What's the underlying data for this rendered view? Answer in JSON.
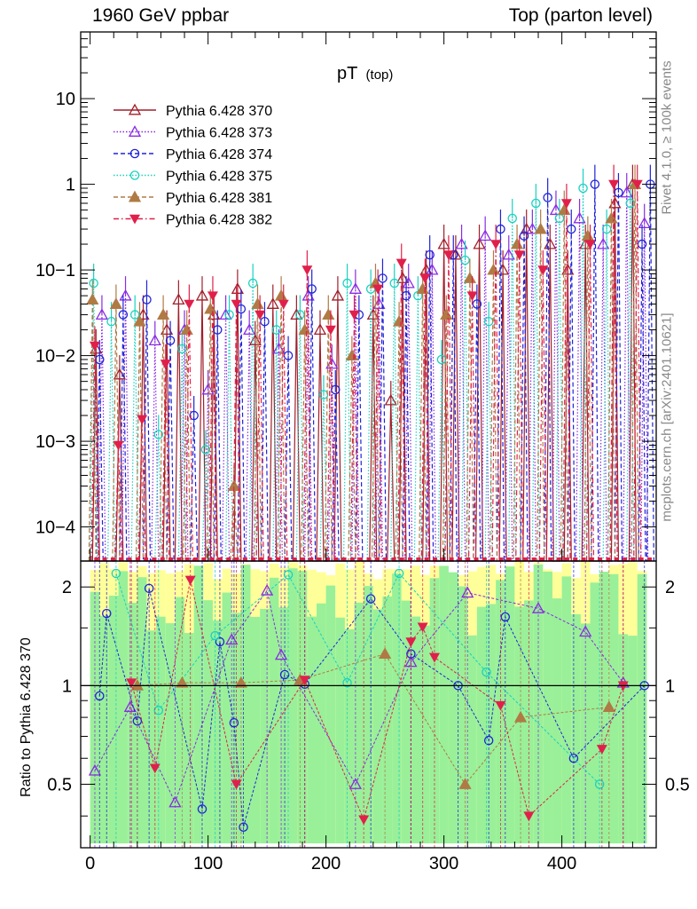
{
  "header": {
    "left": "1960 GeV ppbar",
    "right": "Top (parton level)"
  },
  "side": {
    "rivet": "Rivet 4.1.0, ≥ 100k events",
    "mcplots": "mcplots.cern.ch [arXiv:2401.10621]"
  },
  "colors": {
    "p370": "#a01f2a",
    "p373": "#8a2be2",
    "p374": "#1f23d6",
    "p375": "#19d1c0",
    "p381": "#b07a45",
    "p382": "#e0204a",
    "band_yellow": "#ffff99",
    "band_green": "#99f099"
  },
  "chart_data": [
    {
      "type": "line",
      "panel": "main",
      "title": "pT",
      "title_sub": "(top)",
      "yscale": "log",
      "xlim": [
        -8,
        480
      ],
      "ylim": [
        4e-05,
        60
      ],
      "yticks": [
        {
          "value": 10,
          "label": "10"
        },
        {
          "value": 1,
          "label": "1"
        },
        {
          "value": 0.1,
          "label": "10−1"
        },
        {
          "value": 0.01,
          "label": "10−2"
        },
        {
          "value": 0.001,
          "label": "10−3"
        },
        {
          "value": 0.0001,
          "label": "10−4"
        }
      ],
      "legend_position": "top-left",
      "series": [
        {
          "name": "Pythia 6.428 370",
          "marker": "triangle-open",
          "style": "solid",
          "points": [
            [
              5,
              0.012
            ],
            [
              25,
              0.006
            ],
            [
              45,
              0.03
            ],
            [
              65,
              0.02
            ],
            [
              75,
              0.045
            ],
            [
              95,
              0.05
            ],
            [
              105,
              0.03
            ],
            [
              125,
              0.06
            ],
            [
              140,
              0.015
            ],
            [
              155,
              0.04
            ],
            [
              175,
              0.03
            ],
            [
              195,
              0.02
            ],
            [
              210,
              0.05
            ],
            [
              240,
              0.03
            ],
            [
              255,
              0.003
            ],
            [
              265,
              0.08
            ],
            [
              285,
              0.1
            ],
            [
              300,
              0.2
            ],
            [
              310,
              0.15
            ],
            [
              330,
              0.2
            ],
            [
              350,
              0.1
            ],
            [
              370,
              0.3
            ],
            [
              390,
              0.2
            ],
            [
              405,
              0.1
            ],
            [
              420,
              0.2
            ],
            [
              445,
              0.6
            ],
            [
              460,
              1.0
            ]
          ]
        },
        {
          "name": "Pythia 6.428 373",
          "marker": "triangle-open",
          "style": "dotted",
          "points": [
            [
              10,
              0.03
            ],
            [
              30,
              0.05
            ],
            [
              55,
              0.015
            ],
            [
              80,
              0.02
            ],
            [
              100,
              0.004
            ],
            [
              115,
              0.03
            ],
            [
              135,
              0.02
            ],
            [
              160,
              0.012
            ],
            [
              185,
              0.05
            ],
            [
              205,
              0.008
            ],
            [
              225,
              0.06
            ],
            [
              245,
              0.04
            ],
            [
              270,
              0.07
            ],
            [
              290,
              0.1
            ],
            [
              315,
              0.2
            ],
            [
              335,
              0.25
            ],
            [
              355,
              0.15
            ],
            [
              375,
              0.3
            ],
            [
              395,
              0.5
            ],
            [
              415,
              0.4
            ],
            [
              435,
              0.2
            ],
            [
              455,
              0.8
            ],
            [
              470,
              0.35
            ]
          ]
        },
        {
          "name": "Pythia 6.428 374",
          "marker": "circle-open",
          "style": "dashed",
          "points": [
            [
              8,
              0.009
            ],
            [
              28,
              0.03
            ],
            [
              48,
              0.045
            ],
            [
              68,
              0.015
            ],
            [
              88,
              0.002
            ],
            [
              108,
              0.02
            ],
            [
              128,
              0.035
            ],
            [
              148,
              0.025
            ],
            [
              168,
              0.01
            ],
            [
              188,
              0.06
            ],
            [
              208,
              0.004
            ],
            [
              228,
              0.03
            ],
            [
              248,
              0.08
            ],
            [
              268,
              0.05
            ],
            [
              288,
              0.15
            ],
            [
              308,
              0.15
            ],
            [
              328,
              0.04
            ],
            [
              348,
              0.3
            ],
            [
              368,
              0.25
            ],
            [
              388,
              0.7
            ],
            [
              408,
              0.3
            ],
            [
              428,
              1.0
            ],
            [
              448,
              0.8
            ],
            [
              468,
              0.2
            ],
            [
              475,
              1.0
            ]
          ]
        },
        {
          "name": "Pythia 6.428 375",
          "marker": "circle-open",
          "style": "dotted",
          "points": [
            [
              3,
              0.07
            ],
            [
              18,
              0.025
            ],
            [
              38,
              0.03
            ],
            [
              58,
              0.0012
            ],
            [
              78,
              0.012
            ],
            [
              98,
              0.0008
            ],
            [
              118,
              0.03
            ],
            [
              138,
              0.07
            ],
            [
              158,
              0.02
            ],
            [
              178,
              0.03
            ],
            [
              198,
              0.0035
            ],
            [
              218,
              0.07
            ],
            [
              238,
              0.06
            ],
            [
              258,
              0.07
            ],
            [
              278,
              0.05
            ],
            [
              298,
              0.009
            ],
            [
              318,
              0.13
            ],
            [
              338,
              0.025
            ],
            [
              358,
              0.4
            ],
            [
              378,
              0.6
            ],
            [
              398,
              0.4
            ],
            [
              418,
              0.9
            ],
            [
              438,
              0.3
            ],
            [
              458,
              0.6
            ]
          ]
        },
        {
          "name": "Pythia 6.428 381",
          "marker": "triangle-filled",
          "style": "dashed",
          "points": [
            [
              2,
              0.045
            ],
            [
              22,
              0.04
            ],
            [
              42,
              0.025
            ],
            [
              62,
              0.03
            ],
            [
              82,
              0.02
            ],
            [
              102,
              0.035
            ],
            [
              122,
              0.0003
            ],
            [
              142,
              0.04
            ],
            [
              162,
              0.05
            ],
            [
              182,
              0.02
            ],
            [
              202,
              0.03
            ],
            [
              222,
              0.01
            ],
            [
              242,
              0.07
            ],
            [
              262,
              0.025
            ],
            [
              282,
              0.06
            ],
            [
              302,
              0.03
            ],
            [
              322,
              0.08
            ],
            [
              342,
              0.1
            ],
            [
              362,
              0.2
            ],
            [
              382,
              0.3
            ],
            [
              402,
              0.5
            ],
            [
              422,
              0.25
            ],
            [
              442,
              0.4
            ],
            [
              462,
              1.0
            ]
          ]
        },
        {
          "name": "Pythia 6.428 382",
          "marker": "triangle-down-filled",
          "style": "dashdot",
          "points": [
            [
              4,
              0.013
            ],
            [
              24,
              0.0009
            ],
            [
              44,
              0.0018
            ],
            [
              64,
              0.008
            ],
            [
              84,
              0.04
            ],
            [
              104,
              0.05
            ],
            [
              124,
              0.04
            ],
            [
              144,
              0.03
            ],
            [
              164,
              0.04
            ],
            [
              184,
              0.1
            ],
            [
              204,
              0.02
            ],
            [
              224,
              0.03
            ],
            [
              244,
              0.06
            ],
            [
              264,
              0.12
            ],
            [
              284,
              0.08
            ],
            [
              304,
              0.15
            ],
            [
              324,
              0.05
            ],
            [
              344,
              0.2
            ],
            [
              364,
              0.15
            ],
            [
              384,
              0.1
            ],
            [
              404,
              0.6
            ],
            [
              424,
              0.2
            ],
            [
              444,
              1.0
            ],
            [
              464,
              1.0
            ]
          ]
        }
      ]
    },
    {
      "type": "line",
      "panel": "ratio",
      "ylabel": "Ratio to Pythia 6.428 370",
      "xlim": [
        -8,
        480
      ],
      "ylim": [
        0.32,
        2.4
      ],
      "yscale": "log",
      "yticks": [
        {
          "value": 2,
          "label": "2"
        },
        {
          "value": 1,
          "label": "1"
        },
        {
          "value": 0.5,
          "label": "0.5"
        }
      ],
      "xticks": [
        {
          "value": 0,
          "label": "0"
        },
        {
          "value": 100,
          "label": "100"
        },
        {
          "value": 200,
          "label": "200"
        },
        {
          "value": 300,
          "label": "300"
        },
        {
          "value": 400,
          "label": "400"
        }
      ],
      "series": [
        {
          "name": "Pythia 6.428 373",
          "points": [
            [
              4,
              0.55
            ],
            [
              34,
              0.86
            ],
            [
              72,
              0.44
            ],
            [
              120,
              1.38
            ],
            [
              150,
              1.95
            ],
            [
              162,
              1.24
            ],
            [
              225,
              0.5
            ],
            [
              272,
              1.18
            ],
            [
              320,
              1.92
            ],
            [
              380,
              1.72
            ],
            [
              420,
              1.46
            ],
            [
              452,
              1.02
            ]
          ]
        },
        {
          "name": "Pythia 6.428 374",
          "points": [
            [
              8,
              0.93
            ],
            [
              14,
              1.66
            ],
            [
              40,
              0.78
            ],
            [
              50,
              1.98
            ],
            [
              95,
              0.42
            ],
            [
              110,
              1.36
            ],
            [
              122,
              0.77
            ],
            [
              130,
              0.37
            ],
            [
              165,
              1.08
            ],
            [
              182,
              1.01
            ],
            [
              238,
              1.84
            ],
            [
              272,
              1.25
            ],
            [
              312,
              1.0
            ],
            [
              338,
              0.68
            ],
            [
              352,
              1.62
            ],
            [
              410,
              0.6
            ],
            [
              470,
              1.0
            ]
          ]
        },
        {
          "name": "Pythia 6.428 375",
          "points": [
            [
              22,
              2.2
            ],
            [
              58,
              0.84
            ],
            [
              106,
              1.42
            ],
            [
              168,
              2.18
            ],
            [
              218,
              1.02
            ],
            [
              262,
              2.2
            ],
            [
              336,
              1.1
            ],
            [
              432,
              0.5
            ]
          ]
        },
        {
          "name": "Pythia 6.428 381",
          "points": [
            [
              40,
              1.0
            ],
            [
              78,
              1.02
            ],
            [
              128,
              1.02
            ],
            [
              178,
              1.04
            ],
            [
              250,
              1.25
            ],
            [
              318,
              0.5
            ],
            [
              365,
              0.8
            ],
            [
              440,
              0.86
            ]
          ]
        },
        {
          "name": "Pythia 6.428 382",
          "points": [
            [
              35,
              1.02
            ],
            [
              55,
              0.56
            ],
            [
              85,
              2.1
            ],
            [
              124,
              0.5
            ],
            [
              182,
              1.04
            ],
            [
              232,
              0.39
            ],
            [
              272,
              1.36
            ],
            [
              282,
              1.51
            ],
            [
              292,
              1.22
            ],
            [
              348,
              0.87
            ],
            [
              372,
              0.4
            ],
            [
              434,
              0.64
            ],
            [
              452,
              1.0
            ]
          ]
        }
      ]
    }
  ]
}
